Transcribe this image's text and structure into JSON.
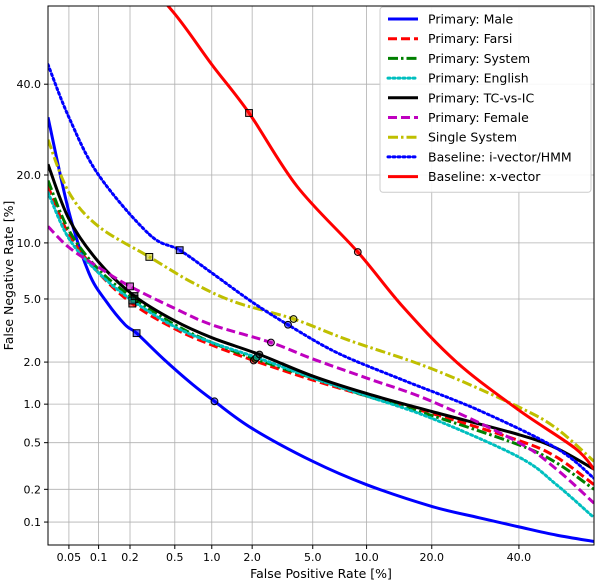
{
  "chart_data": {
    "type": "line",
    "xlabel": "False Positive Rate [%]",
    "ylabel": "False Negative Rate [%]",
    "x_scale": "probit",
    "y_scale": "probit",
    "xlim": [
      0.03,
      60
    ],
    "ylim": [
      0.06,
      60
    ],
    "x_ticks": [
      0.05,
      0.1,
      0.2,
      0.5,
      1.0,
      2.0,
      5.0,
      10.0,
      20.0,
      40.0
    ],
    "x_tick_labels": [
      "0.05",
      "0.1",
      "0.2",
      "0.5",
      "1.0",
      "2.0",
      "5.0",
      "10.0",
      "20.0",
      "40.0"
    ],
    "y_ticks": [
      0.1,
      0.2,
      0.5,
      1.0,
      2.0,
      5.0,
      10.0,
      20.0,
      40.0
    ],
    "y_tick_labels": [
      "0.1",
      "0.2",
      "0.5",
      "1.0",
      "2.0",
      "5.0",
      "10.0",
      "20.0",
      "40.0"
    ],
    "grid": true,
    "legend_position": "top-right",
    "series": [
      {
        "name": "Primary: Male",
        "color": "#0000ff",
        "dash": "solid",
        "x": [
          0.03,
          0.05,
          0.08,
          0.12,
          0.18,
          0.23,
          0.4,
          0.7,
          1.05,
          2,
          5,
          10,
          20,
          30,
          40,
          50,
          60
        ],
        "y": [
          32,
          14,
          7,
          4.8,
          3.5,
          3.1,
          2.1,
          1.4,
          1.05,
          0.65,
          0.35,
          0.22,
          0.14,
          0.11,
          0.09,
          0.075,
          0.065
        ],
        "marker": {
          "x": 1.05,
          "y": 1.05,
          "shape": "circle"
        },
        "marker2": {
          "x": 0.23,
          "y": 3.1,
          "shape": "square"
        }
      },
      {
        "name": "Primary: Farsi",
        "color": "#ff0000",
        "dash": "dashed",
        "x": [
          0.03,
          0.05,
          0.1,
          0.21,
          0.5,
          1,
          2.05,
          5,
          10,
          20,
          40,
          50,
          60
        ],
        "y": [
          18,
          11,
          7,
          4.7,
          3.3,
          2.6,
          2.05,
          1.5,
          1.15,
          0.85,
          0.52,
          0.38,
          0.22
        ],
        "marker": {
          "x": 2.05,
          "y": 2.05,
          "shape": "circle"
        },
        "marker2": {
          "x": 0.21,
          "y": 4.7,
          "shape": "square"
        }
      },
      {
        "name": "Primary: System",
        "color": "#008000",
        "dash": "dashdot",
        "x": [
          0.03,
          0.05,
          0.1,
          0.22,
          0.5,
          1,
          2.1,
          5,
          10,
          20,
          40,
          50,
          60
        ],
        "y": [
          19,
          11.5,
          7.3,
          5,
          3.5,
          2.7,
          2.1,
          1.55,
          1.15,
          0.82,
          0.48,
          0.34,
          0.2
        ],
        "marker": {
          "x": 2.1,
          "y": 2.1,
          "shape": "circle"
        },
        "marker2": {
          "x": 0.22,
          "y": 5.0,
          "shape": "square"
        }
      },
      {
        "name": "Primary: English",
        "color": "#00bfbf",
        "dash": "dotted",
        "x": [
          0.03,
          0.05,
          0.1,
          0.21,
          0.5,
          1,
          2.15,
          5,
          10,
          20,
          40,
          50,
          60
        ],
        "y": [
          17,
          10.5,
          7,
          4.9,
          3.4,
          2.7,
          2.15,
          1.55,
          1.15,
          0.78,
          0.38,
          0.22,
          0.11
        ],
        "marker": {
          "x": 2.15,
          "y": 2.15,
          "shape": "circle"
        },
        "marker2": {
          "x": 0.21,
          "y": 4.9,
          "shape": "square"
        }
      },
      {
        "name": "Primary: TC-vs-IC",
        "color": "#000000",
        "dash": "solid",
        "x": [
          0.03,
          0.05,
          0.1,
          0.22,
          0.5,
          1,
          2.25,
          5,
          10,
          20,
          40,
          50,
          60
        ],
        "y": [
          22,
          13,
          8,
          5.2,
          3.7,
          2.9,
          2.25,
          1.6,
          1.2,
          0.88,
          0.58,
          0.45,
          0.3
        ],
        "marker": {
          "x": 2.25,
          "y": 2.25,
          "shape": "circle"
        },
        "marker2": {
          "x": 0.22,
          "y": 5.2,
          "shape": "square"
        }
      },
      {
        "name": "Primary: Female",
        "color": "#bf00bf",
        "dash": "dashed",
        "x": [
          0.03,
          0.05,
          0.1,
          0.2,
          0.5,
          1,
          2.7,
          5,
          10,
          20,
          40,
          50,
          60
        ],
        "y": [
          12,
          9.5,
          7.5,
          5.9,
          4.4,
          3.5,
          2.7,
          2.1,
          1.55,
          1.05,
          0.5,
          0.3,
          0.15
        ],
        "marker": {
          "x": 2.7,
          "y": 2.7,
          "shape": "circle"
        },
        "marker2": {
          "x": 0.2,
          "y": 5.9,
          "shape": "square"
        }
      },
      {
        "name": "Single System",
        "color": "#bfbf00",
        "dash": "dashdot",
        "x": [
          0.03,
          0.05,
          0.1,
          0.3,
          0.7,
          1.5,
          3.8,
          8,
          20,
          40,
          50,
          60
        ],
        "y": [
          27,
          17,
          12,
          8.5,
          6.2,
          4.8,
          3.8,
          2.8,
          1.8,
          0.95,
          0.65,
          0.35
        ],
        "marker": {
          "x": 3.8,
          "y": 3.8,
          "shape": "circle"
        },
        "marker2": {
          "x": 0.3,
          "y": 8.5,
          "shape": "square"
        }
      },
      {
        "name": "Baseline: i-vector/HMM",
        "color": "#0000ff",
        "dash": "dotted",
        "x": [
          0.03,
          0.05,
          0.1,
          0.3,
          0.55,
          1,
          2,
          3.5,
          7,
          15,
          30,
          50,
          60
        ],
        "y": [
          45,
          32,
          20,
          11,
          9.2,
          7,
          4.8,
          3.5,
          2.3,
          1.5,
          0.9,
          0.45,
          0.25
        ],
        "marker": {
          "x": 3.5,
          "y": 3.5,
          "shape": "circle"
        },
        "marker2": {
          "x": 0.55,
          "y": 9.2,
          "shape": "square"
        }
      },
      {
        "name": "Baseline: x-vector",
        "color": "#ff0000",
        "dash": "solid",
        "x": [
          0.2,
          0.5,
          1,
          1.9,
          4,
          9,
          15,
          25,
          40,
          55,
          60
        ],
        "y": [
          70,
          58,
          45,
          33,
          18,
          9,
          4.5,
          2.0,
          0.9,
          0.45,
          0.3
        ],
        "marker": {
          "x": 9.0,
          "y": 9.0,
          "shape": "circle"
        },
        "marker2": {
          "x": 1.9,
          "y": 33,
          "shape": "square"
        }
      }
    ]
  }
}
